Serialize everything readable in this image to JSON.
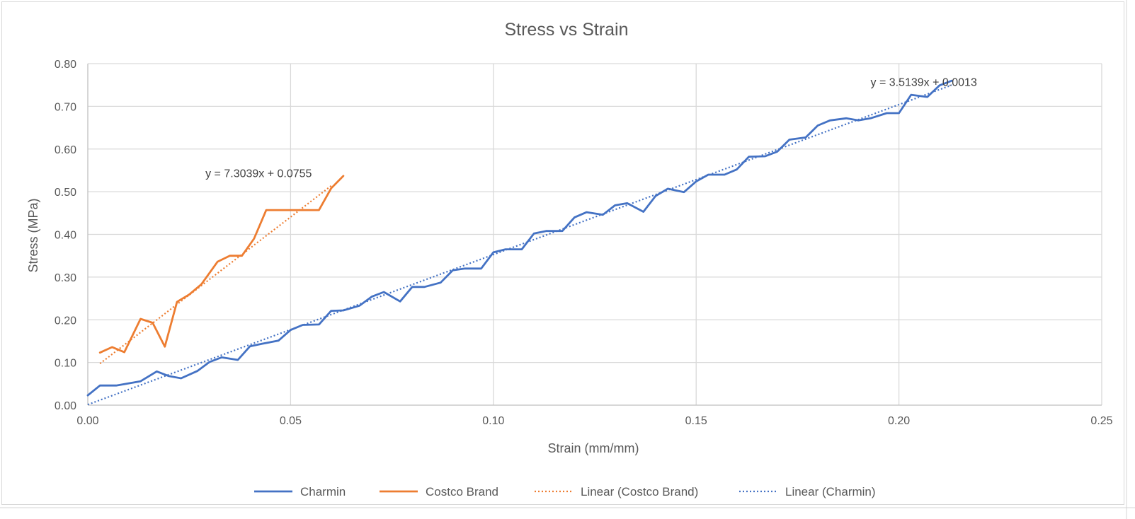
{
  "chart_data": {
    "type": "line",
    "title": "Stress vs Strain",
    "xlabel": "Strain (mm/mm)",
    "ylabel": "Stress (MPa)",
    "xlim": [
      0,
      0.25
    ],
    "ylim": [
      0,
      0.8
    ],
    "xticks": [
      0,
      0.05,
      0.1,
      0.15,
      0.2,
      0.25
    ],
    "xtick_labels": [
      "0.00",
      "0.05",
      "0.10",
      "0.15",
      "0.20",
      "0.25"
    ],
    "yticks": [
      0,
      0.1,
      0.2,
      0.3,
      0.4,
      0.5,
      0.6,
      0.7,
      0.8
    ],
    "ytick_labels": [
      "0.00",
      "0.10",
      "0.20",
      "0.30",
      "0.40",
      "0.50",
      "0.60",
      "0.70",
      "0.80"
    ],
    "grid": true,
    "legend_position": "bottom",
    "series": [
      {
        "name": "Charmin",
        "color": "#4472c4",
        "style": "solid",
        "x": [
          0.0,
          0.003,
          0.007,
          0.01,
          0.013,
          0.017,
          0.02,
          0.023,
          0.027,
          0.03,
          0.033,
          0.037,
          0.04,
          0.043,
          0.047,
          0.05,
          0.053,
          0.057,
          0.06,
          0.063,
          0.067,
          0.07,
          0.073,
          0.077,
          0.08,
          0.083,
          0.087,
          0.09,
          0.093,
          0.097,
          0.1,
          0.103,
          0.107,
          0.11,
          0.113,
          0.117,
          0.12,
          0.123,
          0.127,
          0.13,
          0.133,
          0.137,
          0.14,
          0.143,
          0.147,
          0.15,
          0.153,
          0.157,
          0.16,
          0.163,
          0.167,
          0.17,
          0.173,
          0.177,
          0.18,
          0.183,
          0.187,
          0.19,
          0.193,
          0.197,
          0.2,
          0.203,
          0.207,
          0.21,
          0.213
        ],
        "y": [
          0.023,
          0.046,
          0.046,
          0.051,
          0.056,
          0.079,
          0.068,
          0.063,
          0.08,
          0.101,
          0.112,
          0.106,
          0.138,
          0.144,
          0.151,
          0.176,
          0.188,
          0.189,
          0.221,
          0.222,
          0.233,
          0.254,
          0.265,
          0.243,
          0.277,
          0.277,
          0.287,
          0.316,
          0.32,
          0.32,
          0.358,
          0.365,
          0.365,
          0.402,
          0.408,
          0.408,
          0.44,
          0.452,
          0.446,
          0.468,
          0.473,
          0.453,
          0.49,
          0.507,
          0.499,
          0.524,
          0.54,
          0.54,
          0.552,
          0.582,
          0.583,
          0.594,
          0.622,
          0.627,
          0.655,
          0.667,
          0.672,
          0.667,
          0.672,
          0.684,
          0.684,
          0.727,
          0.722,
          0.749,
          0.76
        ]
      },
      {
        "name": "Costco Brand",
        "color": "#ed7d31",
        "style": "solid",
        "x": [
          0.003,
          0.006,
          0.009,
          0.013,
          0.016,
          0.019,
          0.022,
          0.025,
          0.028,
          0.032,
          0.035,
          0.038,
          0.041,
          0.044,
          0.047,
          0.05,
          0.054,
          0.057,
          0.06,
          0.063
        ],
        "y": [
          0.123,
          0.136,
          0.124,
          0.202,
          0.193,
          0.137,
          0.242,
          0.259,
          0.283,
          0.336,
          0.35,
          0.35,
          0.39,
          0.457,
          0.457,
          0.457,
          0.457,
          0.457,
          0.508,
          0.537
        ]
      }
    ],
    "trendlines": [
      {
        "name": "Linear (Costco Brand)",
        "color": "#ed7d31",
        "style": "dotted",
        "slope": 7.3039,
        "intercept": 0.0755,
        "x_range": [
          0.003,
          0.06
        ],
        "equation": "y = 7.3039x + 0.0755",
        "equation_anchor": [
          0.029,
          0.534
        ]
      },
      {
        "name": "Linear (Charmin)",
        "color": "#4472c4",
        "style": "dotted",
        "slope": 3.5139,
        "intercept": 0.0013,
        "x_range": [
          0.0,
          0.213
        ],
        "equation": "y = 3.5139x + 0.0013",
        "equation_anchor": [
          0.193,
          0.748
        ]
      }
    ],
    "legend": [
      {
        "label": "Charmin",
        "color": "#4472c4",
        "style": "solid"
      },
      {
        "label": "Costco Brand",
        "color": "#ed7d31",
        "style": "solid"
      },
      {
        "label": "Linear (Costco Brand)",
        "color": "#ed7d31",
        "style": "dotted"
      },
      {
        "label": "Linear (Charmin)",
        "color": "#4472c4",
        "style": "dotted"
      }
    ]
  }
}
